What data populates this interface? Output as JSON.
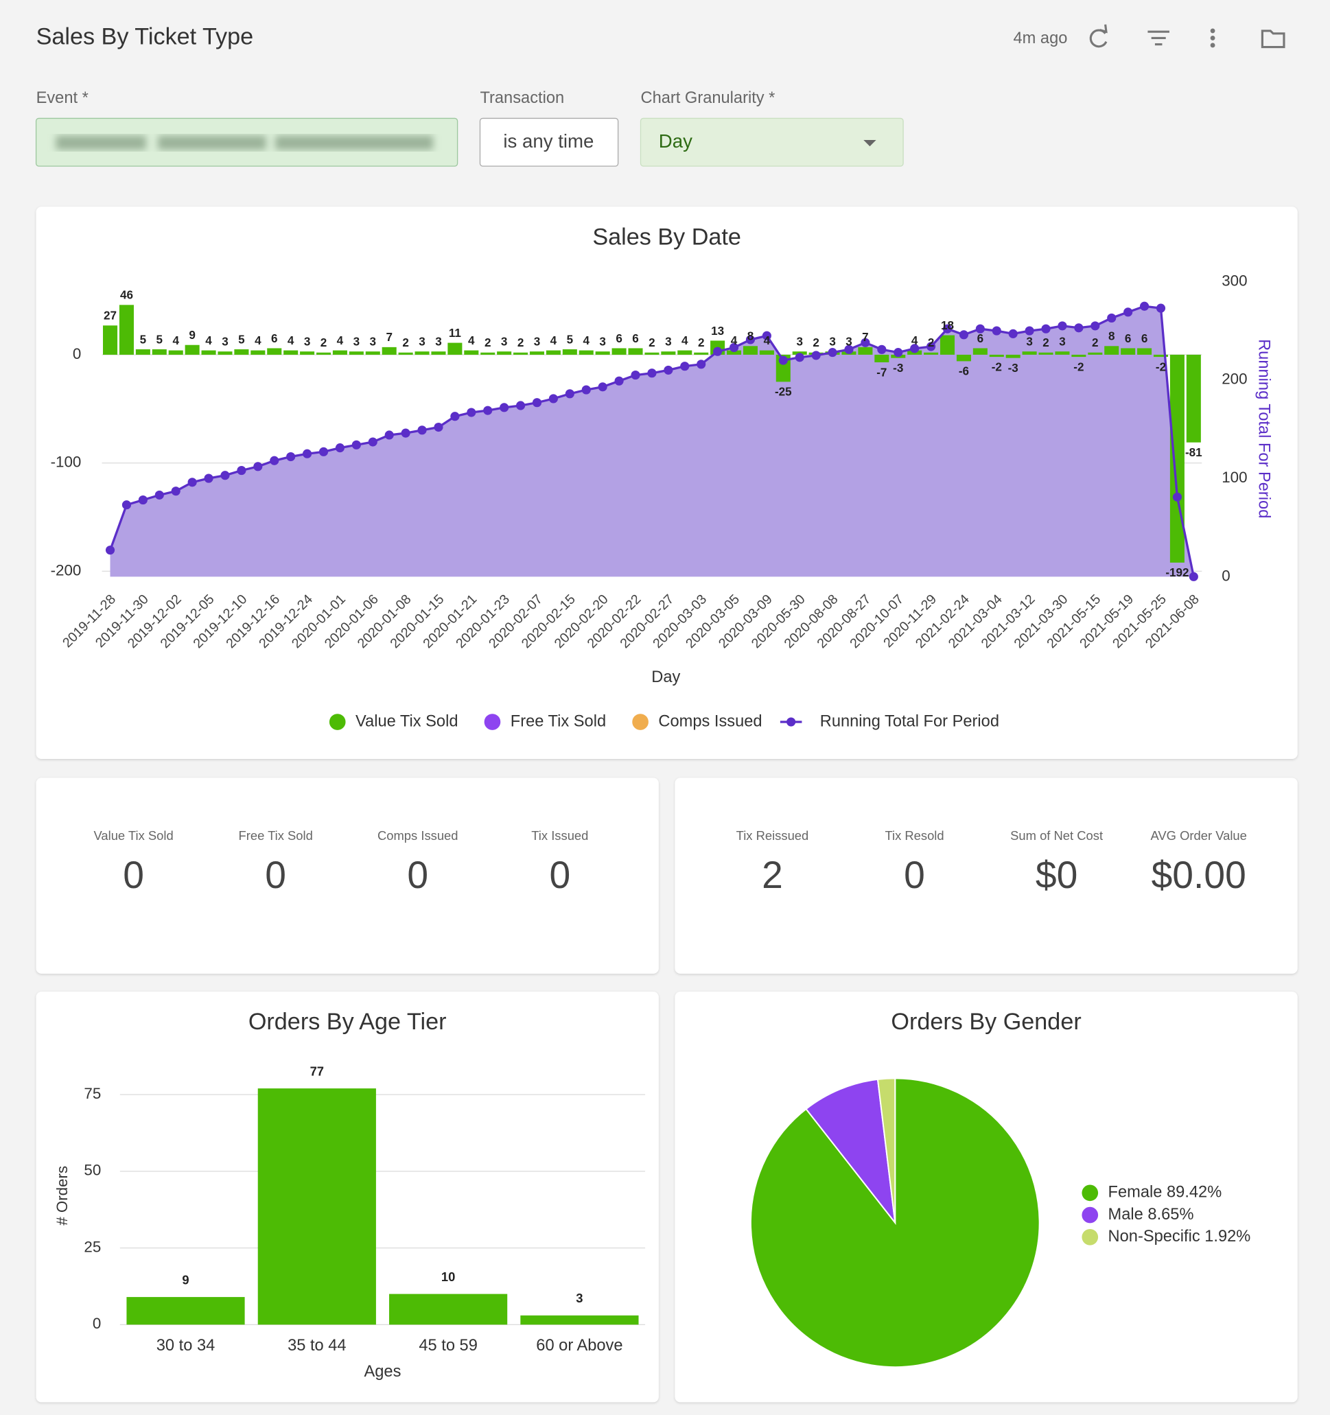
{
  "header": {
    "title": "Sales By Ticket Type",
    "updated": "4m ago"
  },
  "filters": [
    {
      "label": "Event *"
    },
    {
      "label": "Transaction",
      "value": "is any time"
    },
    {
      "label": "Chart Granularity *",
      "value": "Day"
    }
  ],
  "chart_data": [
    {
      "type": "combo",
      "title": "Sales By Date",
      "x_label": "Day",
      "y2_label": "Running Total For Period",
      "categories": [
        "2019-11-28",
        null,
        "2019-11-30",
        null,
        "2019-12-02",
        null,
        "2019-12-05",
        null,
        "2019-12-10",
        null,
        "2019-12-16",
        null,
        "2019-12-24",
        null,
        "2020-01-01",
        null,
        "2020-01-06",
        null,
        "2020-01-08",
        null,
        "2020-01-15",
        null,
        "2020-01-21",
        null,
        "2020-01-23",
        null,
        "2020-02-07",
        null,
        "2020-02-15",
        null,
        "2020-02-20",
        null,
        "2020-02-22",
        null,
        "2020-02-27",
        null,
        "2020-03-03",
        null,
        "2020-03-05",
        null,
        "2020-03-09",
        null,
        "2020-05-30",
        null,
        "2020-08-08",
        null,
        "2020-08-27",
        null,
        "2020-10-07",
        null,
        "2020-11-29",
        null,
        "2021-02-24",
        null,
        "2021-03-04",
        null,
        "2021-03-12",
        null,
        "2021-03-30",
        null,
        "2021-05-15",
        null,
        "2021-05-19",
        null,
        "2021-05-25",
        null,
        "2021-06-08"
      ],
      "series": [
        {
          "name": "Value Tix Sold",
          "type": "bar",
          "color": "#4dbb05",
          "data_labels": true,
          "values": [
            27,
            46,
            5,
            5,
            4,
            9,
            4,
            3,
            5,
            4,
            6,
            4,
            3,
            2,
            4,
            3,
            3,
            7,
            2,
            3,
            3,
            11,
            4,
            2,
            3,
            2,
            3,
            4,
            5,
            4,
            3,
            6,
            6,
            2,
            3,
            4,
            2,
            13,
            4,
            8,
            4,
            -25,
            3,
            2,
            3,
            3,
            7,
            -7,
            -3,
            4,
            2,
            18,
            -6,
            6,
            -2,
            -3,
            3,
            2,
            3,
            -2,
            2,
            8,
            6,
            6,
            -2,
            -192,
            -81
          ]
        },
        {
          "name": "Free Tix Sold",
          "type": "bar",
          "color": "#8e44f0",
          "values": [
            0,
            0,
            0,
            0,
            0,
            0,
            0,
            0,
            0,
            0,
            0,
            0,
            0,
            0,
            0,
            0,
            0,
            0,
            0,
            0,
            0,
            0,
            0,
            0,
            0,
            0,
            0,
            0,
            0,
            0,
            0,
            0,
            0,
            0,
            0,
            0,
            0,
            0,
            0,
            0,
            0,
            0,
            0,
            0,
            0,
            0,
            0,
            0,
            0,
            0,
            0,
            0,
            0,
            0,
            0,
            0,
            0,
            0,
            0,
            0,
            0,
            0,
            0,
            0,
            0,
            0,
            0
          ]
        },
        {
          "name": "Comps Issued",
          "type": "bar",
          "color": "#f0ad4e",
          "values": [
            0,
            0,
            0,
            0,
            0,
            0,
            0,
            0,
            0,
            0,
            0,
            0,
            0,
            0,
            0,
            0,
            0,
            0,
            0,
            0,
            0,
            0,
            0,
            0,
            0,
            0,
            0,
            0,
            0,
            0,
            0,
            0,
            0,
            0,
            0,
            0,
            0,
            0,
            0,
            0,
            0,
            0,
            0,
            0,
            0,
            0,
            0,
            0,
            0,
            0,
            0,
            0,
            0,
            0,
            0,
            0,
            0,
            0,
            0,
            0,
            0,
            0,
            0,
            0,
            0,
            0,
            0
          ]
        },
        {
          "name": "Running Total For Period",
          "type": "line",
          "axis": "y2",
          "area": true,
          "color": "#5b2ec8",
          "area_color": "#b3a1e4",
          "values": [
            27,
            73,
            78,
            83,
            87,
            96,
            100,
            103,
            108,
            112,
            118,
            122,
            125,
            127,
            131,
            134,
            137,
            144,
            146,
            149,
            152,
            163,
            167,
            169,
            172,
            174,
            177,
            181,
            186,
            190,
            193,
            199,
            205,
            207,
            210,
            214,
            216,
            229,
            233,
            241,
            245,
            220,
            223,
            225,
            228,
            231,
            238,
            231,
            228,
            232,
            234,
            252,
            246,
            252,
            250,
            247,
            250,
            252,
            255,
            253,
            255,
            263,
            269,
            275,
            273,
            81,
            0
          ]
        }
      ],
      "ylim": [
        -205,
        67.5
      ],
      "yticks": [
        -200,
        -100,
        0
      ],
      "y2lim": [
        0,
        300
      ],
      "y2ticks": [
        0,
        100,
        200,
        300
      ],
      "grid": true,
      "legend": "bottom"
    },
    {
      "type": "bar",
      "title": "Orders By Age Tier",
      "x_label": "Ages",
      "y_label": "# Orders",
      "categories": [
        "30 to 34",
        "35 to 44",
        "45 to 59",
        "60 or Above"
      ],
      "values": [
        9,
        77,
        10,
        3
      ],
      "color": "#4dbb05",
      "data_labels": true,
      "ylim": [
        0,
        80
      ],
      "yticks": [
        0,
        25,
        50,
        75
      ],
      "grid": true
    },
    {
      "type": "pie",
      "title": "Orders By Gender",
      "categories": [
        "Female",
        "Male",
        "Non-Specific"
      ],
      "values": [
        89.42,
        8.65,
        1.92
      ],
      "value_labels": [
        "89.42%",
        "8.65%",
        "1.92%"
      ],
      "colors": [
        "#4dbb05",
        "#8e44f0",
        "#c6dc6c"
      ],
      "legend": "right"
    }
  ],
  "kpis": [
    {
      "label": "Value Tix Sold",
      "value": 0
    },
    {
      "label": "Free Tix Sold",
      "value": 0
    },
    {
      "label": "Comps Issued",
      "value": 0
    },
    {
      "label": "Tix Issued",
      "value": 0
    },
    {
      "label": "Tix Reissued",
      "value": 2
    },
    {
      "label": "Tix Resold",
      "value": 0
    },
    {
      "label": "Sum of Net Cost",
      "value": "$0"
    },
    {
      "label": "AVG Order Value",
      "value": "$0.00"
    }
  ]
}
